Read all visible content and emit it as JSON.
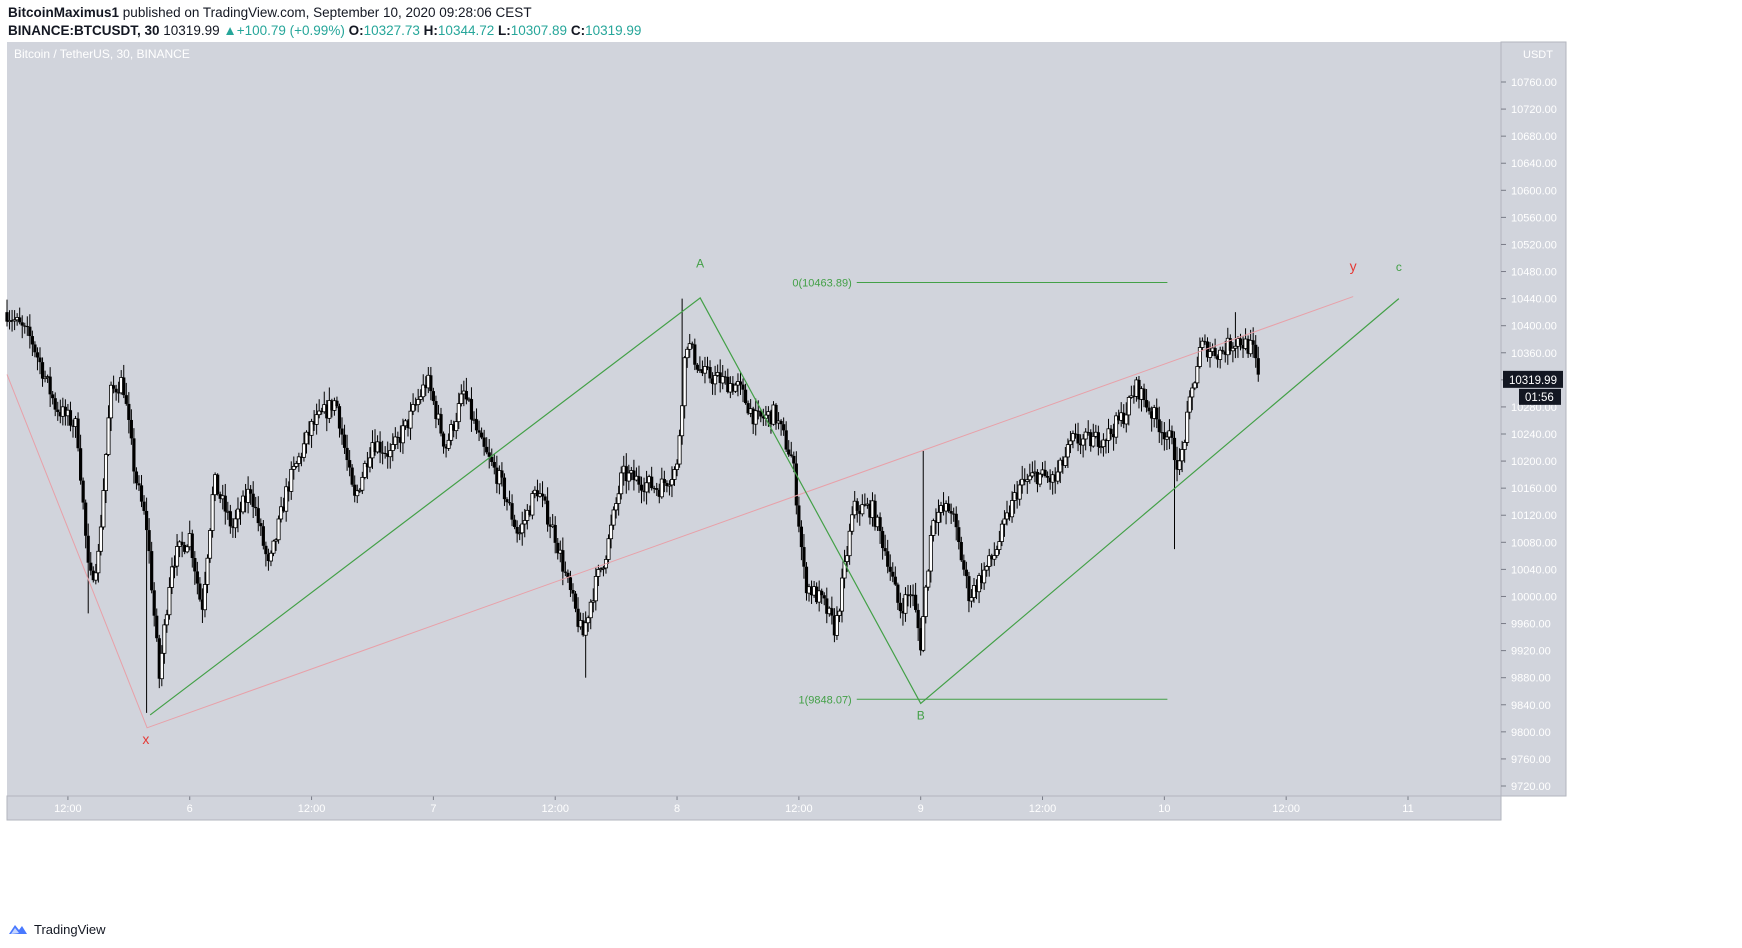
{
  "header": {
    "author": "BitcoinMaximus1",
    "published": "published on TradingView.com, September 10, 2020 09:28:06 CEST",
    "symbol": "BINANCE:BTCUSDT, 30",
    "last": "10319.99",
    "change": "+100.79 (+0.99%)",
    "o_label": "O:",
    "o_value": "10327.73",
    "h_label": "H:",
    "h_value": "10344.72",
    "l_label": "L:",
    "l_value": "10307.89",
    "c_label": "C:",
    "c_value": "10319.99"
  },
  "footer": {
    "brand": "TradingView",
    "logo_icon": "tradingview-logo-icon"
  },
  "colors": {
    "background": "#d1d4dc",
    "candle": "#000000",
    "green": "#43a047",
    "pink": "#e8a0a8",
    "red": "#e53935"
  },
  "chart_data": {
    "type": "candlestick",
    "title": "Bitcoin / TetherUS, 30, BINANCE",
    "currency": "USDT",
    "ylim": [
      9700,
      10800
    ],
    "price_ticks": [
      10760,
      10720,
      10680,
      10640,
      10600,
      10560,
      10520,
      10480,
      10440,
      10400,
      10360,
      10320,
      10280,
      10240,
      10200,
      10160,
      10120,
      10080,
      10040,
      10000,
      9960,
      9920,
      9880,
      9840,
      9800,
      9760,
      9720
    ],
    "price_tick_labels": [
      "10760.00",
      "10720.00",
      "10680.00",
      "10640.00",
      "10600.00",
      "10560.00",
      "10520.00",
      "10480.00",
      "10440.00",
      "10400.00",
      "10360.00",
      "10320.00",
      "10280.00",
      "10240.00",
      "10200.00",
      "10160.00",
      "10120.00",
      "10080.00",
      "10040.00",
      "10000.00",
      "9960.00",
      "9920.00",
      "9880.00",
      "9840.00",
      "9800.00",
      "9760.00",
      "9720.00"
    ],
    "time_ticks": [
      {
        "label": "12:00",
        "t": 1.0
      },
      {
        "label": "6",
        "t": 3.0
      },
      {
        "label": "12:00",
        "t": 5.0
      },
      {
        "label": "7",
        "t": 7.0
      },
      {
        "label": "12:00",
        "t": 9.0
      },
      {
        "label": "8",
        "t": 11.0
      },
      {
        "label": "12:00",
        "t": 13.0
      },
      {
        "label": "9",
        "t": 15.0
      },
      {
        "label": "12:00",
        "t": 17.0
      },
      {
        "label": "10",
        "t": 19.0
      },
      {
        "label": "12:00",
        "t": 21.0
      },
      {
        "label": "11",
        "t": 23.0
      }
    ],
    "time_units": "12-hour periods from start of visible range",
    "last_price": "10319.99",
    "countdown": "01:56",
    "fib_levels": [
      {
        "label": "0(10463.89)",
        "price": 10463.89
      },
      {
        "label": "1(9848.07)",
        "price": 9848.07
      }
    ],
    "green_path": [
      {
        "t": 2.35,
        "price": 9825
      },
      {
        "t": 11.38,
        "price": 10441
      },
      {
        "t": 15.0,
        "price": 9842
      },
      {
        "t": 22.85,
        "price": 10440
      }
    ],
    "pink_path": [
      {
        "t": 0.0,
        "price": 10328
      },
      {
        "t": 2.3,
        "price": 9806
      },
      {
        "t": 22.1,
        "price": 10443
      }
    ],
    "wave_labels": [
      {
        "text": "A",
        "t": 11.38,
        "price": 10486,
        "color": "green"
      },
      {
        "text": "B",
        "t": 15.0,
        "price": 9818,
        "color": "green"
      },
      {
        "text": "c",
        "t": 22.85,
        "price": 10481,
        "color": "green"
      },
      {
        "text": "x",
        "t": 2.28,
        "price": 9782,
        "color": "red"
      },
      {
        "text": "y",
        "t": 22.1,
        "price": 10481,
        "color": "red"
      }
    ],
    "anchors": [
      {
        "t": 0.0,
        "price": 10420
      },
      {
        "t": 0.4,
        "price": 10380
      },
      {
        "t": 0.8,
        "price": 10280
      },
      {
        "t": 1.15,
        "price": 10250
      },
      {
        "t": 1.35,
        "price": 10020
      },
      {
        "t": 1.5,
        "price": 10060
      },
      {
        "t": 1.7,
        "price": 10300
      },
      {
        "t": 1.9,
        "price": 10320
      },
      {
        "t": 2.1,
        "price": 10180
      },
      {
        "t": 2.3,
        "price": 10100
      },
      {
        "t": 2.5,
        "price": 9880
      },
      {
        "t": 2.7,
        "price": 10050
      },
      {
        "t": 3.0,
        "price": 10090
      },
      {
        "t": 3.2,
        "price": 9980
      },
      {
        "t": 3.4,
        "price": 10170
      },
      {
        "t": 3.7,
        "price": 10100
      },
      {
        "t": 4.0,
        "price": 10160
      },
      {
        "t": 4.3,
        "price": 10040
      },
      {
        "t": 4.6,
        "price": 10160
      },
      {
        "t": 5.0,
        "price": 10250
      },
      {
        "t": 5.4,
        "price": 10290
      },
      {
        "t": 5.7,
        "price": 10140
      },
      {
        "t": 6.0,
        "price": 10230
      },
      {
        "t": 6.3,
        "price": 10210
      },
      {
        "t": 6.6,
        "price": 10260
      },
      {
        "t": 6.9,
        "price": 10320
      },
      {
        "t": 7.2,
        "price": 10220
      },
      {
        "t": 7.5,
        "price": 10300
      },
      {
        "t": 7.8,
        "price": 10220
      },
      {
        "t": 8.1,
        "price": 10170
      },
      {
        "t": 8.4,
        "price": 10090
      },
      {
        "t": 8.7,
        "price": 10160
      },
      {
        "t": 9.0,
        "price": 10090
      },
      {
        "t": 9.2,
        "price": 10020
      },
      {
        "t": 9.45,
        "price": 9940
      },
      {
        "t": 9.6,
        "price": 10000
      },
      {
        "t": 9.85,
        "price": 10070
      },
      {
        "t": 10.1,
        "price": 10180
      },
      {
        "t": 10.4,
        "price": 10170
      },
      {
        "t": 10.7,
        "price": 10160
      },
      {
        "t": 11.0,
        "price": 10190
      },
      {
        "t": 11.15,
        "price": 10380
      },
      {
        "t": 11.4,
        "price": 10330
      },
      {
        "t": 11.7,
        "price": 10320
      },
      {
        "t": 12.0,
        "price": 10310
      },
      {
        "t": 12.3,
        "price": 10260
      },
      {
        "t": 12.6,
        "price": 10270
      },
      {
        "t": 12.9,
        "price": 10200
      },
      {
        "t": 13.1,
        "price": 10020
      },
      {
        "t": 13.4,
        "price": 9990
      },
      {
        "t": 13.6,
        "price": 9950
      },
      {
        "t": 13.9,
        "price": 10130
      },
      {
        "t": 14.2,
        "price": 10130
      },
      {
        "t": 14.45,
        "price": 10060
      },
      {
        "t": 14.65,
        "price": 9980
      },
      {
        "t": 14.85,
        "price": 10010
      },
      {
        "t": 15.0,
        "price": 9930
      },
      {
        "t": 15.2,
        "price": 10120
      },
      {
        "t": 15.5,
        "price": 10130
      },
      {
        "t": 15.8,
        "price": 10000
      },
      {
        "t": 16.2,
        "price": 10060
      },
      {
        "t": 16.6,
        "price": 10160
      },
      {
        "t": 16.9,
        "price": 10180
      },
      {
        "t": 17.2,
        "price": 10170
      },
      {
        "t": 17.5,
        "price": 10230
      },
      {
        "t": 17.8,
        "price": 10230
      },
      {
        "t": 18.1,
        "price": 10240
      },
      {
        "t": 18.35,
        "price": 10270
      },
      {
        "t": 18.55,
        "price": 10310
      },
      {
        "t": 18.8,
        "price": 10270
      },
      {
        "t": 19.1,
        "price": 10230
      },
      {
        "t": 19.25,
        "price": 10190
      },
      {
        "t": 19.45,
        "price": 10300
      },
      {
        "t": 19.6,
        "price": 10370
      },
      {
        "t": 19.9,
        "price": 10360
      },
      {
        "t": 20.2,
        "price": 10380
      },
      {
        "t": 20.45,
        "price": 10365
      },
      {
        "t": 20.55,
        "price": 10320
      }
    ]
  }
}
